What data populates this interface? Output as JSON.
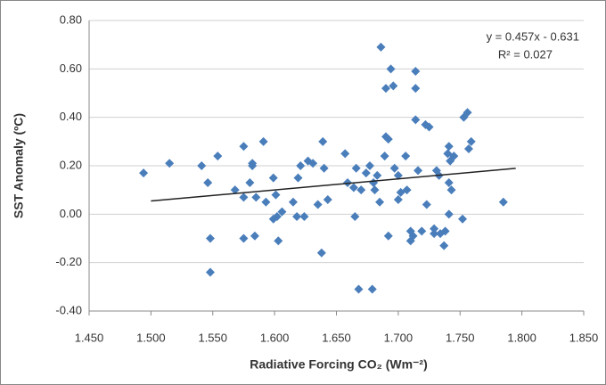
{
  "chart_data": {
    "type": "scatter",
    "xlabel": "Radiative Forcing CO₂ (Wm⁻²)",
    "ylabel": "SST Anomaly (ºC)",
    "color": "#4a7ebb",
    "grid": true,
    "xlim": [
      1.45,
      1.85
    ],
    "ylim": [
      -0.4,
      0.8
    ],
    "xticks": [
      {
        "value": 1.45,
        "label": "1.450"
      },
      {
        "value": 1.5,
        "label": "1.500"
      },
      {
        "value": 1.55,
        "label": "1.550"
      },
      {
        "value": 1.6,
        "label": "1.600"
      },
      {
        "value": 1.65,
        "label": "1.650"
      },
      {
        "value": 1.7,
        "label": "1.700"
      },
      {
        "value": 1.75,
        "label": "1.750"
      },
      {
        "value": 1.8,
        "label": "1.800"
      },
      {
        "value": 1.85,
        "label": "1.850"
      }
    ],
    "yticks": [
      {
        "value": -0.4,
        "label": "-0.40"
      },
      {
        "value": -0.2,
        "label": "-0.20"
      },
      {
        "value": 0,
        "label": "0.00"
      },
      {
        "value": 0.2,
        "label": "0.20"
      },
      {
        "value": 0.4,
        "label": "0.40"
      },
      {
        "value": 0.6,
        "label": "0.60"
      },
      {
        "value": 0.8,
        "label": "0.80"
      }
    ],
    "x": [
      1.494,
      1.515,
      1.541,
      1.546,
      1.554,
      1.548,
      1.548,
      1.568,
      1.575,
      1.575,
      1.575,
      1.58,
      1.582,
      1.582,
      1.584,
      1.585,
      1.591,
      1.593,
      1.599,
      1.599,
      1.601,
      1.603,
      1.606,
      1.602,
      1.615,
      1.618,
      1.621,
      1.624,
      1.619,
      1.627,
      1.631,
      1.635,
      1.639,
      1.638,
      1.64,
      1.643,
      1.657,
      1.659,
      1.664,
      1.665,
      1.666,
      1.668,
      1.67,
      1.674,
      1.677,
      1.679,
      1.68,
      1.681,
      1.683,
      1.685,
      1.686,
      1.689,
      1.69,
      1.69,
      1.692,
      1.692,
      1.694,
      1.696,
      1.697,
      1.7,
      1.7,
      1.702,
      1.706,
      1.707,
      1.71,
      1.71,
      1.712,
      1.714,
      1.714,
      1.714,
      1.716,
      1.719,
      1.722,
      1.723,
      1.725,
      1.729,
      1.729,
      1.731,
      1.733,
      1.734,
      1.738,
      1.737,
      1.74,
      1.741,
      1.741,
      1.741,
      1.742,
      1.743,
      1.745,
      1.752,
      1.753,
      1.756,
      1.757,
      1.759,
      1.785
    ],
    "values": [
      0.17,
      0.21,
      0.2,
      0.13,
      0.24,
      -0.1,
      -0.24,
      0.1,
      0.28,
      -0.1,
      0.07,
      0.13,
      0.2,
      0.21,
      -0.09,
      0.07,
      0.3,
      0.05,
      0.15,
      -0.02,
      0.08,
      -0.11,
      0.01,
      -0.01,
      0.05,
      -0.01,
      0.2,
      -0.01,
      0.15,
      0.22,
      0.21,
      0.04,
      0.3,
      -0.16,
      0.19,
      0.06,
      0.25,
      0.13,
      0.11,
      -0.01,
      0.19,
      -0.31,
      0.1,
      0.17,
      0.2,
      -0.31,
      0.13,
      0.1,
      0.16,
      0.05,
      0.69,
      0.24,
      0.52,
      0.32,
      0.31,
      -0.09,
      0.6,
      0.53,
      0.19,
      0.16,
      0.06,
      0.09,
      0.24,
      0.1,
      -0.07,
      -0.11,
      -0.09,
      0.59,
      0.52,
      0.39,
      0.18,
      -0.07,
      0.37,
      0.04,
      0.36,
      -0.08,
      -0.06,
      0.18,
      0.16,
      -0.08,
      -0.07,
      -0.13,
      0.25,
      0.28,
      0.0,
      0.13,
      0.22,
      0.1,
      0.24,
      -0.02,
      0.4,
      0.42,
      0.27,
      0.3,
      0.05
    ],
    "trendline": {
      "slope": 0.457,
      "intercept": -0.631,
      "x": [
        1.5,
        1.795
      ],
      "equation": "y = 0.457x - 0.631",
      "r2": "R² = 0.027"
    }
  }
}
